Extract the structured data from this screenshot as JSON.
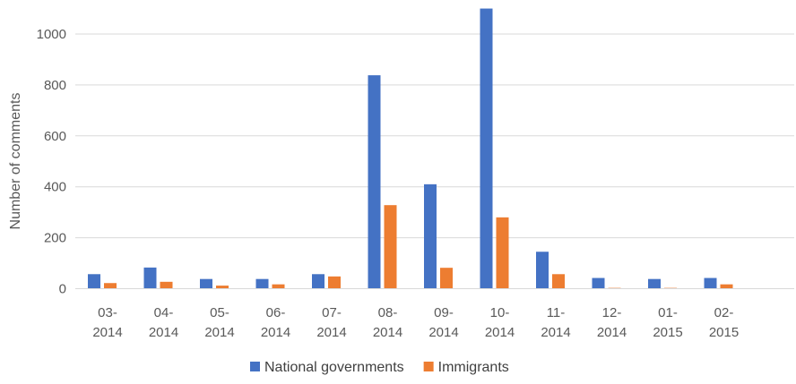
{
  "chart_data": {
    "type": "bar",
    "title": "",
    "xlabel": "",
    "ylabel": "Number of comments",
    "ylim": [
      0,
      1100
    ],
    "yticks": [
      0,
      200,
      400,
      600,
      800,
      1000
    ],
    "grid": true,
    "legend_position": "bottom",
    "categories": [
      [
        "03-",
        "2014"
      ],
      [
        "04-",
        "2014"
      ],
      [
        "05-",
        "2014"
      ],
      [
        "06-",
        "2014"
      ],
      [
        "07-",
        "2014"
      ],
      [
        "08-",
        "2014"
      ],
      [
        "09-",
        "2014"
      ],
      [
        "10-",
        "2014"
      ],
      [
        "11-",
        "2014"
      ],
      [
        "12-",
        "2014"
      ],
      [
        "01-",
        "2015"
      ],
      [
        "02-",
        "2015"
      ]
    ],
    "series": [
      {
        "name": "National governments",
        "color": "#4472C4",
        "values": [
          57,
          83,
          38,
          38,
          57,
          838,
          410,
          1100,
          145,
          42,
          38,
          42
        ]
      },
      {
        "name": "Immigrants",
        "color": "#ED7D31",
        "values": [
          22,
          27,
          12,
          17,
          48,
          328,
          82,
          280,
          57,
          3,
          3,
          17
        ]
      }
    ]
  }
}
